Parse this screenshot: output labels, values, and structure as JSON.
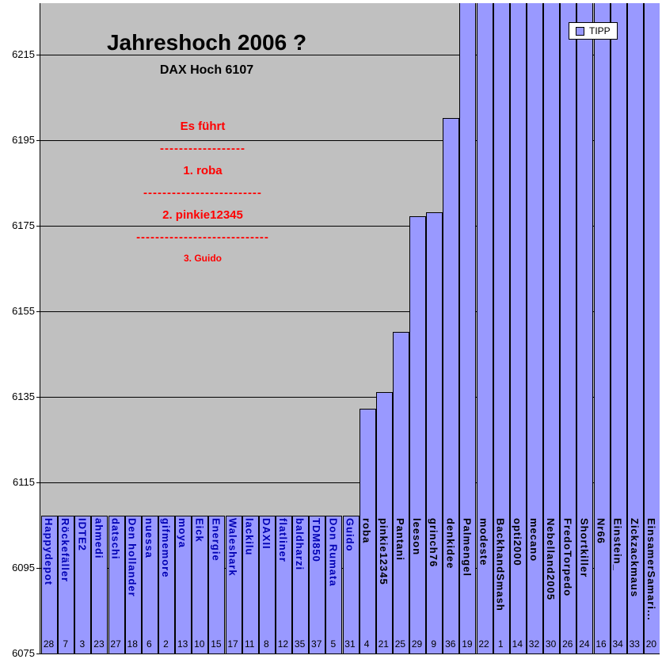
{
  "chart_data": {
    "type": "bar",
    "title": "Jahreshoch 2006 ?",
    "subtitle": "DAX Hoch 6107",
    "legend_label": "TIPP",
    "legend_position": "top-right",
    "grid": true,
    "ylim": [
      6075,
      6227
    ],
    "yticks": [
      6075,
      6095,
      6115,
      6135,
      6155,
      6175,
      6195,
      6215
    ],
    "colors": {
      "bar": "#9999FF",
      "bar_border": "#000000",
      "plot_bg": "#C0C0C0",
      "blue_label": "#0000B4",
      "black_label": "#000000",
      "annotation": "#FF0000",
      "gridline": "#000000"
    },
    "bars": [
      {
        "name": "Happydepot",
        "value": 6107,
        "num": 28,
        "label_color": "blue"
      },
      {
        "name": "Röckefäller",
        "value": 6107,
        "num": 7,
        "label_color": "blue"
      },
      {
        "name": "IDTE2",
        "value": 6107,
        "num": 3,
        "label_color": "blue"
      },
      {
        "name": "ahmedi",
        "value": 6107,
        "num": 23,
        "label_color": "blue"
      },
      {
        "name": "datschi",
        "value": 6107,
        "num": 27,
        "label_color": "blue"
      },
      {
        "name": "Den hollander",
        "value": 6107,
        "num": 18,
        "label_color": "blue"
      },
      {
        "name": "nuessa",
        "value": 6107,
        "num": 6,
        "label_color": "blue"
      },
      {
        "name": "gifmemore",
        "value": 6107,
        "num": 2,
        "label_color": "blue"
      },
      {
        "name": "moya",
        "value": 6107,
        "num": 13,
        "label_color": "blue"
      },
      {
        "name": "Eick",
        "value": 6107,
        "num": 10,
        "label_color": "blue"
      },
      {
        "name": "Energie",
        "value": 6107,
        "num": 15,
        "label_color": "blue"
      },
      {
        "name": "Waleshark",
        "value": 6107,
        "num": 17,
        "label_color": "blue"
      },
      {
        "name": "lackilu",
        "value": 6107,
        "num": 11,
        "label_color": "blue"
      },
      {
        "name": "DAXII",
        "value": 6107,
        "num": 8,
        "label_color": "blue"
      },
      {
        "name": "flatliner",
        "value": 6107,
        "num": 12,
        "label_color": "blue"
      },
      {
        "name": "baldharzi",
        "value": 6107,
        "num": 35,
        "label_color": "blue"
      },
      {
        "name": "TDM850",
        "value": 6107,
        "num": 37,
        "label_color": "blue"
      },
      {
        "name": "Don Rumata",
        "value": 6107,
        "num": 5,
        "label_color": "blue"
      },
      {
        "name": "Guido",
        "value": 6107,
        "num": 31,
        "label_color": "blue"
      },
      {
        "name": "roba",
        "value": 6132,
        "num": 4,
        "label_color": "black"
      },
      {
        "name": "pinkie12345",
        "value": 6136,
        "num": 21,
        "label_color": "black"
      },
      {
        "name": "Pantani",
        "value": 6150,
        "num": 25,
        "label_color": "black"
      },
      {
        "name": "leeson",
        "value": 6177,
        "num": 29,
        "label_color": "black"
      },
      {
        "name": "grinch76",
        "value": 6178,
        "num": 9,
        "label_color": "black"
      },
      {
        "name": "denkidee",
        "value": 6200,
        "num": 36,
        "label_color": "black"
      },
      {
        "name": "Palmengel",
        "value": 6230,
        "num": 19,
        "label_color": "black"
      },
      {
        "name": "modeste",
        "value": 6230,
        "num": 22,
        "label_color": "black"
      },
      {
        "name": "BackhandSmash",
        "value": 6230,
        "num": 1,
        "label_color": "black"
      },
      {
        "name": "opti2000",
        "value": 6230,
        "num": 14,
        "label_color": "black"
      },
      {
        "name": "mecano",
        "value": 6230,
        "num": 32,
        "label_color": "black"
      },
      {
        "name": "Nebelland2005",
        "value": 6230,
        "num": 30,
        "label_color": "black"
      },
      {
        "name": "FredoTorpedo",
        "value": 6230,
        "num": 26,
        "label_color": "black"
      },
      {
        "name": "Shortkiller",
        "value": 6230,
        "num": 24,
        "label_color": "black"
      },
      {
        "name": "Nr66",
        "value": 6230,
        "num": 16,
        "label_color": "black"
      },
      {
        "name": "Einstein_",
        "value": 6230,
        "num": 34,
        "label_color": "black"
      },
      {
        "name": "Zickzackmaus",
        "value": 6230,
        "num": 33,
        "label_color": "black"
      },
      {
        "name": "EinsamerSamari...",
        "value": 6230,
        "num": 20,
        "label_color": "black"
      }
    ]
  },
  "annotation": {
    "heading": "Es führt",
    "sep1": "------------------",
    "entry1": "1. roba",
    "sep2": "-------------------------",
    "entry2": "2. pinkie12345",
    "sep3": "----------------------------",
    "entry3": "3. Guido"
  }
}
